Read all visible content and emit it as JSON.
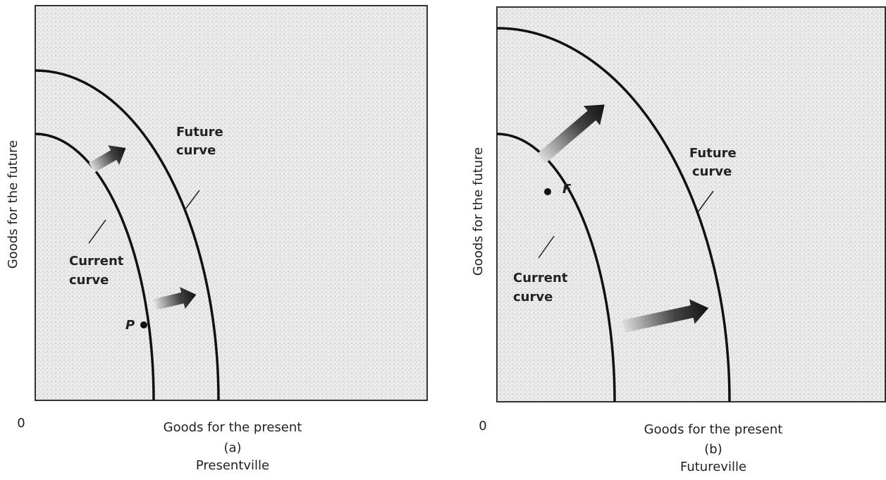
{
  "panels": [
    {
      "y_axis_label": "Goods for the future",
      "x_axis_label": "Goods for the present",
      "origin": "0",
      "caption": "(a)",
      "name": "Presentville",
      "future_curve_label": [
        "Future",
        "curve"
      ],
      "current_curve_label": [
        "Current",
        "curve"
      ],
      "point_label": "P"
    },
    {
      "y_axis_label": "Goods for the future",
      "x_axis_label": "Goods for the present",
      "origin": "0",
      "caption": "(b)",
      "name": "Futureville",
      "future_curve_label": [
        "Future",
        "curve"
      ],
      "current_curve_label": [
        "Current",
        "curve"
      ],
      "point_label": "F"
    }
  ]
}
